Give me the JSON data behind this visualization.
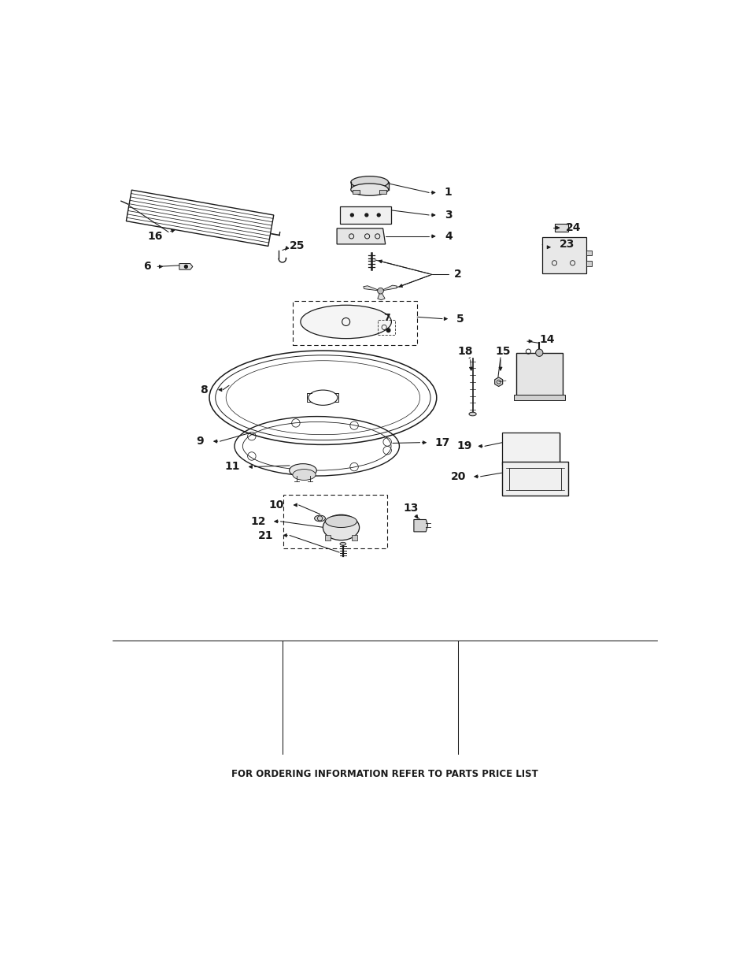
{
  "footer_text": "FOR ORDERING INFORMATION REFER TO PARTS PRICE LIST",
  "bg_color": "#ffffff",
  "line_color": "#1a1a1a",
  "fig_width": 9.54,
  "fig_height": 12.35,
  "dpi": 100
}
